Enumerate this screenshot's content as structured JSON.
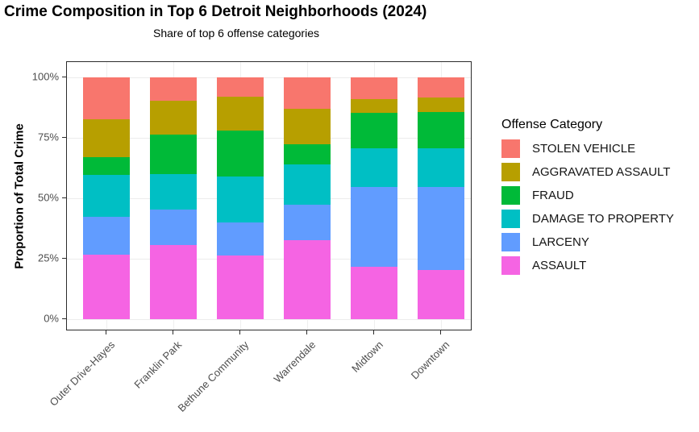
{
  "header": {
    "title": "Crime Composition in Top 6 Detroit Neighborhoods (2024)",
    "subtitle": "Share of top 6 offense categories"
  },
  "axes": {
    "y": {
      "label": "Proportion of Total Crime",
      "tick_labels": [
        "0%",
        "25%",
        "50%",
        "75%",
        "100%"
      ],
      "tick_values": [
        0,
        25,
        50,
        75,
        100
      ]
    },
    "x": {
      "categories": [
        "Outer Drive-Hayes",
        "Franklin Park",
        "Bethune Community",
        "Warrendale",
        "Midtown",
        "Downtown"
      ]
    }
  },
  "legend": {
    "title": "Offense Category",
    "items": [
      {
        "label": "STOLEN VEHICLE",
        "color": "#F8766D"
      },
      {
        "label": "AGGRAVATED ASSAULT",
        "color": "#B79F00"
      },
      {
        "label": "FRAUD",
        "color": "#00BA38"
      },
      {
        "label": "DAMAGE TO PROPERTY",
        "color": "#00BFC4"
      },
      {
        "label": "LARCENY",
        "color": "#619CFF"
      },
      {
        "label": "ASSAULT",
        "color": "#F564E3"
      }
    ]
  },
  "colors": {
    "panel_border": "#2b2b2b",
    "gridline": "#ececec",
    "axis_text": "#4d4d4d"
  },
  "chart_data": {
    "type": "bar",
    "stacked": true,
    "normalized_to_percent": true,
    "title": "Crime Composition in Top 6 Detroit Neighborhoods (2024)",
    "subtitle": "Share of top 6 offense categories",
    "xlabel": "",
    "ylabel": "Proportion of Total Crime",
    "ylim": [
      0,
      100
    ],
    "ytick_format": "percent",
    "grid": "major",
    "legend_title": "Offense Category",
    "legend_position": "right",
    "categories": [
      "Outer Drive-Hayes",
      "Franklin Park",
      "Bethune Community",
      "Warrendale",
      "Midtown",
      "Downtown"
    ],
    "series": [
      {
        "name": "STOLEN VEHICLE",
        "color": "#F8766D",
        "values": [
          17.4,
          9.5,
          8.0,
          13.0,
          8.9,
          8.3
        ]
      },
      {
        "name": "AGGRAVATED ASSAULT",
        "color": "#B79F00",
        "values": [
          15.7,
          14.1,
          14.0,
          14.5,
          5.7,
          6.0
        ]
      },
      {
        "name": "FRAUD",
        "color": "#00BA38",
        "values": [
          7.2,
          16.4,
          18.9,
          8.4,
          14.6,
          15.0
        ]
      },
      {
        "name": "DAMAGE TO PROPERTY",
        "color": "#00BFC4",
        "values": [
          17.5,
          14.7,
          19.2,
          16.7,
          16.3,
          15.9
        ]
      },
      {
        "name": "LARCENY",
        "color": "#619CFF",
        "values": [
          15.5,
          14.5,
          13.5,
          14.9,
          32.8,
          34.4
        ]
      },
      {
        "name": "ASSAULT",
        "color": "#F564E3",
        "values": [
          26.7,
          30.8,
          26.4,
          32.5,
          21.7,
          20.4
        ]
      }
    ],
    "stack_order_bottom_to_top": [
      "ASSAULT",
      "LARCENY",
      "DAMAGE TO PROPERTY",
      "FRAUD",
      "AGGRAVATED ASSAULT",
      "STOLEN VEHICLE"
    ]
  }
}
